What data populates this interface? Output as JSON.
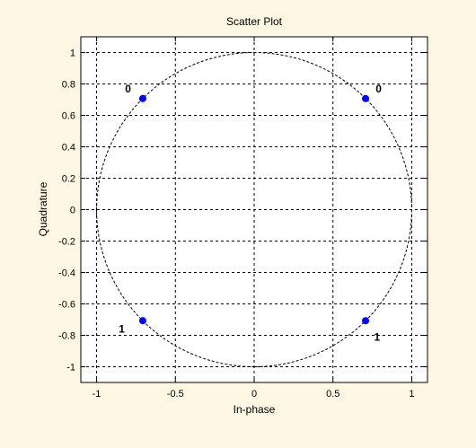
{
  "window": {
    "background": "#fdf7e3",
    "plot_background": "#ffffff"
  },
  "chart_data": {
    "type": "scatter",
    "title": "Scatter Plot",
    "xlabel": "In-phase",
    "ylabel": "Quadrature",
    "xlim": [
      -1.1,
      1.1
    ],
    "ylim": [
      -1.1,
      1.1
    ],
    "xticks": [
      -1,
      -0.5,
      0,
      0.5,
      1
    ],
    "xtick_labels": [
      "-1",
      "-0.5",
      "0",
      "0.5",
      "1"
    ],
    "yticks": [
      1,
      0.8,
      0.6,
      0.4,
      0.2,
      0,
      -0.2,
      -0.4,
      -0.6,
      -0.8,
      -1
    ],
    "ytick_labels": [
      "1",
      "0.8",
      "0.6",
      "0.4",
      "0.2",
      "0",
      "-0.2",
      "-0.4",
      "-0.6",
      "-0.8",
      "-1"
    ],
    "grid": true,
    "reference_circle": {
      "radius": 1,
      "style": "dashed",
      "color": "#000000"
    },
    "series": [
      {
        "color": "#0000ee",
        "points": [
          {
            "x": -0.707,
            "y": 0.707
          },
          {
            "x": 0.707,
            "y": 0.707
          },
          {
            "x": -0.707,
            "y": -0.707
          },
          {
            "x": 0.707,
            "y": -0.707
          }
        ]
      }
    ],
    "annotations": [
      {
        "text": "0",
        "x": -0.8,
        "y": 0.77
      },
      {
        "text": "0",
        "x": 0.79,
        "y": 0.77
      },
      {
        "text": "1",
        "x": -0.84,
        "y": -0.76
      },
      {
        "text": "1",
        "x": 0.78,
        "y": -0.81
      }
    ]
  }
}
